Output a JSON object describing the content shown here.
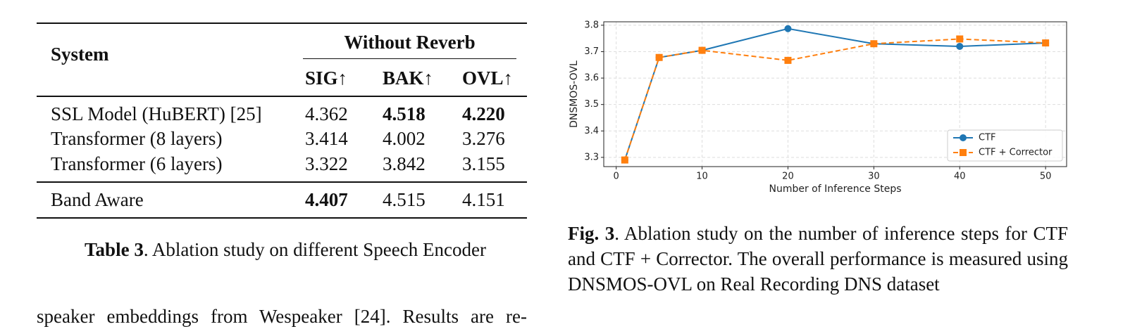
{
  "table": {
    "header": {
      "system": "System",
      "group": "Without Reverb",
      "columns": [
        "SIG↑",
        "BAK↑",
        "OVL↑"
      ]
    },
    "rows": [
      {
        "cells": [
          "SSL Model (HuBERT) [25]",
          "4.362",
          "4.518",
          "4.220"
        ],
        "bold": [
          false,
          false,
          true,
          true
        ]
      },
      {
        "cells": [
          "Transformer (8 layers)",
          "3.414",
          "4.002",
          "3.276"
        ],
        "bold": [
          false,
          false,
          false,
          false
        ]
      },
      {
        "cells": [
          "Transformer (6 layers)",
          "3.322",
          "3.842",
          "3.155"
        ],
        "bold": [
          false,
          false,
          false,
          false
        ]
      },
      {
        "cells": [
          "Band Aware",
          "4.407",
          "4.515",
          "4.151"
        ],
        "bold": [
          false,
          true,
          false,
          false
        ]
      }
    ]
  },
  "table_caption": {
    "label": "Table 3",
    "text": ". Ablation study on different Speech Encoder"
  },
  "chart_data": {
    "type": "line",
    "xlabel": "Number of Inference Steps",
    "ylabel": "DNSMOS-OVL",
    "x": [
      1,
      5,
      10,
      20,
      30,
      40,
      50
    ],
    "series": [
      {
        "name": "CTF",
        "color": "#1f77b4",
        "marker": "circle",
        "linestyle": "solid",
        "values": [
          3.29,
          3.678,
          3.705,
          3.787,
          3.73,
          3.72,
          3.733
        ]
      },
      {
        "name": "CTF + Corrector",
        "color": "#ff7f0e",
        "marker": "square",
        "linestyle": "dashed",
        "values": [
          3.29,
          3.678,
          3.705,
          3.667,
          3.73,
          3.748,
          3.733
        ]
      }
    ],
    "xlim": [
      -1.45,
      52.45
    ],
    "xticks": [
      0,
      10,
      20,
      30,
      40,
      50
    ],
    "ylim": [
      3.265,
      3.813
    ],
    "yticks": [
      3.3,
      3.4,
      3.5,
      3.6,
      3.7,
      3.8
    ],
    "grid": true,
    "legend": "lower right"
  },
  "figure_caption": {
    "label": "Fig. 3",
    "text": ". Ablation study on the number of inference steps for CTF and CTF + Corrector. The overall performance is measured using DNSMOS-OVL on Real Recording DNS dataset"
  },
  "body_text": "speaker embeddings from Wespeaker [24]. Results are re-"
}
